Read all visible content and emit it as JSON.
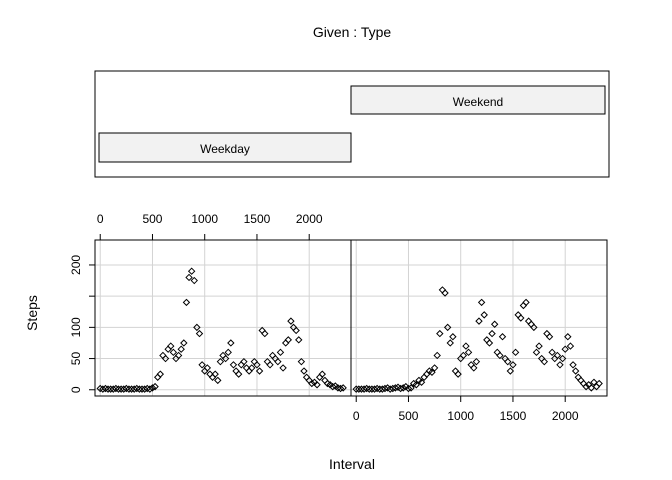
{
  "chart_data": {
    "type": "scatter",
    "title": "Given : Type",
    "xlabel": "Interval",
    "ylabel": "Steps",
    "x_ticks": [
      0,
      500,
      1000,
      1500,
      2000
    ],
    "y_ticks": [
      0,
      50,
      100,
      200
    ],
    "xlim": [
      -50,
      2400
    ],
    "ylim": [
      -10,
      240
    ],
    "grid": true,
    "conditioning": {
      "variable": "Type",
      "levels": [
        "Weekday",
        "Weekend"
      ]
    },
    "panels": [
      {
        "name": "Weekday",
        "points": [
          [
            0,
            2
          ],
          [
            25,
            1
          ],
          [
            50,
            2
          ],
          [
            75,
            1
          ],
          [
            100,
            1
          ],
          [
            125,
            1
          ],
          [
            150,
            2
          ],
          [
            175,
            1
          ],
          [
            200,
            1
          ],
          [
            225,
            1
          ],
          [
            250,
            2
          ],
          [
            275,
            1
          ],
          [
            300,
            1
          ],
          [
            325,
            1
          ],
          [
            350,
            2
          ],
          [
            375,
            1
          ],
          [
            400,
            1
          ],
          [
            425,
            1
          ],
          [
            450,
            2
          ],
          [
            475,
            1
          ],
          [
            500,
            3
          ],
          [
            525,
            5
          ],
          [
            550,
            20
          ],
          [
            575,
            25
          ],
          [
            600,
            55
          ],
          [
            625,
            50
          ],
          [
            650,
            65
          ],
          [
            675,
            70
          ],
          [
            700,
            60
          ],
          [
            725,
            50
          ],
          [
            750,
            55
          ],
          [
            775,
            65
          ],
          [
            800,
            75
          ],
          [
            825,
            140
          ],
          [
            850,
            180
          ],
          [
            875,
            190
          ],
          [
            900,
            175
          ],
          [
            925,
            100
          ],
          [
            950,
            90
          ],
          [
            975,
            40
          ],
          [
            1000,
            30
          ],
          [
            1025,
            35
          ],
          [
            1050,
            25
          ],
          [
            1075,
            20
          ],
          [
            1100,
            25
          ],
          [
            1125,
            15
          ],
          [
            1150,
            45
          ],
          [
            1175,
            55
          ],
          [
            1200,
            50
          ],
          [
            1225,
            60
          ],
          [
            1250,
            75
          ],
          [
            1275,
            40
          ],
          [
            1300,
            30
          ],
          [
            1325,
            25
          ],
          [
            1350,
            40
          ],
          [
            1375,
            45
          ],
          [
            1400,
            35
          ],
          [
            1425,
            30
          ],
          [
            1450,
            35
          ],
          [
            1475,
            45
          ],
          [
            1500,
            40
          ],
          [
            1525,
            30
          ],
          [
            1550,
            95
          ],
          [
            1575,
            90
          ],
          [
            1600,
            45
          ],
          [
            1625,
            40
          ],
          [
            1650,
            55
          ],
          [
            1675,
            50
          ],
          [
            1700,
            45
          ],
          [
            1725,
            60
          ],
          [
            1750,
            35
          ],
          [
            1775,
            75
          ],
          [
            1800,
            80
          ],
          [
            1825,
            110
          ],
          [
            1850,
            100
          ],
          [
            1875,
            95
          ],
          [
            1900,
            80
          ],
          [
            1925,
            45
          ],
          [
            1950,
            30
          ],
          [
            1975,
            20
          ],
          [
            2000,
            15
          ],
          [
            2025,
            10
          ],
          [
            2050,
            12
          ],
          [
            2075,
            8
          ],
          [
            2100,
            20
          ],
          [
            2125,
            25
          ],
          [
            2150,
            15
          ],
          [
            2175,
            10
          ],
          [
            2200,
            8
          ],
          [
            2225,
            5
          ],
          [
            2250,
            6
          ],
          [
            2275,
            3
          ],
          [
            2300,
            2
          ],
          [
            2325,
            3
          ]
        ]
      },
      {
        "name": "Weekend",
        "points": [
          [
            0,
            1
          ],
          [
            25,
            1
          ],
          [
            50,
            1
          ],
          [
            75,
            1
          ],
          [
            100,
            2
          ],
          [
            125,
            1
          ],
          [
            150,
            1
          ],
          [
            175,
            1
          ],
          [
            200,
            2
          ],
          [
            225,
            1
          ],
          [
            250,
            1
          ],
          [
            275,
            2
          ],
          [
            300,
            3
          ],
          [
            325,
            1
          ],
          [
            350,
            2
          ],
          [
            375,
            3
          ],
          [
            400,
            4
          ],
          [
            425,
            2
          ],
          [
            450,
            3
          ],
          [
            475,
            5
          ],
          [
            500,
            2
          ],
          [
            525,
            3
          ],
          [
            550,
            10
          ],
          [
            575,
            8
          ],
          [
            600,
            15
          ],
          [
            625,
            12
          ],
          [
            650,
            20
          ],
          [
            675,
            25
          ],
          [
            700,
            30
          ],
          [
            725,
            28
          ],
          [
            750,
            35
          ],
          [
            775,
            55
          ],
          [
            800,
            90
          ],
          [
            825,
            160
          ],
          [
            850,
            155
          ],
          [
            875,
            100
          ],
          [
            900,
            75
          ],
          [
            925,
            85
          ],
          [
            950,
            30
          ],
          [
            975,
            25
          ],
          [
            1000,
            50
          ],
          [
            1025,
            55
          ],
          [
            1050,
            70
          ],
          [
            1075,
            60
          ],
          [
            1100,
            40
          ],
          [
            1125,
            35
          ],
          [
            1150,
            45
          ],
          [
            1175,
            110
          ],
          [
            1200,
            140
          ],
          [
            1225,
            120
          ],
          [
            1250,
            80
          ],
          [
            1275,
            75
          ],
          [
            1300,
            90
          ],
          [
            1325,
            105
          ],
          [
            1350,
            60
          ],
          [
            1375,
            55
          ],
          [
            1400,
            85
          ],
          [
            1425,
            50
          ],
          [
            1450,
            45
          ],
          [
            1475,
            30
          ],
          [
            1500,
            40
          ],
          [
            1525,
            60
          ],
          [
            1550,
            120
          ],
          [
            1575,
            115
          ],
          [
            1600,
            135
          ],
          [
            1625,
            140
          ],
          [
            1650,
            110
          ],
          [
            1675,
            105
          ],
          [
            1700,
            100
          ],
          [
            1725,
            60
          ],
          [
            1750,
            70
          ],
          [
            1775,
            50
          ],
          [
            1800,
            45
          ],
          [
            1825,
            90
          ],
          [
            1850,
            85
          ],
          [
            1875,
            60
          ],
          [
            1900,
            50
          ],
          [
            1925,
            55
          ],
          [
            1950,
            40
          ],
          [
            1975,
            50
          ],
          [
            2000,
            65
          ],
          [
            2025,
            85
          ],
          [
            2050,
            70
          ],
          [
            2075,
            40
          ],
          [
            2100,
            30
          ],
          [
            2125,
            20
          ],
          [
            2150,
            15
          ],
          [
            2175,
            10
          ],
          [
            2200,
            5
          ],
          [
            2225,
            8
          ],
          [
            2250,
            3
          ],
          [
            2275,
            12
          ],
          [
            2300,
            5
          ],
          [
            2325,
            10
          ]
        ]
      }
    ]
  }
}
